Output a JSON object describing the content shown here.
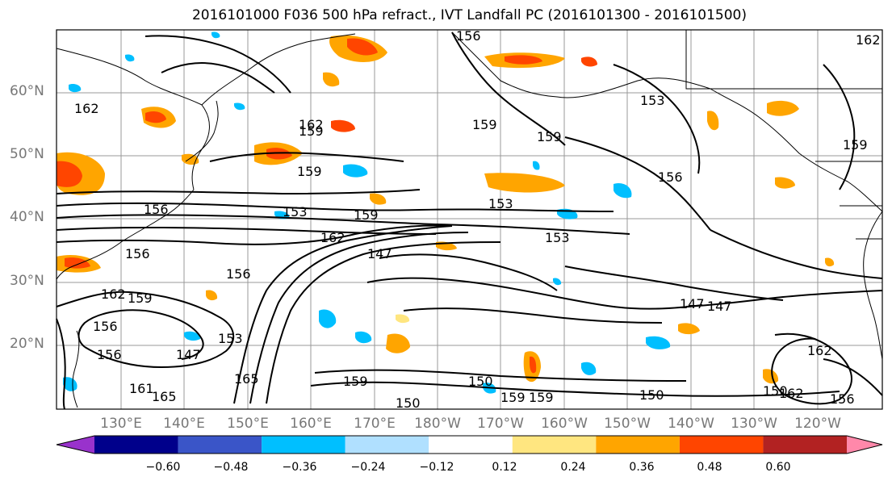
{
  "title": "2016101000 F036 500 hPa refract., IVT Landfall PC (2016101300 - 2016101500)",
  "lat_labels": [
    "60°N",
    "50°N",
    "40°N",
    "30°N",
    "20°N"
  ],
  "lon_labels": [
    "130°E",
    "140°E",
    "150°E",
    "160°E",
    "170°E",
    "180°W",
    "170°W",
    "160°W",
    "150°W",
    "140°W",
    "130°W",
    "120°W"
  ],
  "contour_labels": [
    "156",
    "162",
    "162",
    "159",
    "156",
    "153",
    "159",
    "162",
    "159",
    "153",
    "156",
    "159",
    "153",
    "153",
    "162",
    "147",
    "147",
    "156",
    "162",
    "159",
    "147",
    "153",
    "159",
    "150",
    "150",
    "159",
    "159",
    "150",
    "162",
    "156",
    "162",
    "150",
    "159",
    "156",
    "147",
    "161",
    "165",
    "156",
    "165",
    "159",
    "156"
  ],
  "colorbar": {
    "ticks": [
      "−0.60",
      "−0.48",
      "−0.36",
      "−0.24",
      "−0.12",
      "0.12",
      "0.24",
      "0.36",
      "0.48",
      "0.60"
    ],
    "colors": [
      "#9932CC",
      "#00008B",
      "#3A55C8",
      "#00BFFF",
      "#B0E0FF",
      "#FFFFFF",
      "#FFE680",
      "#FFA500",
      "#FF4500",
      "#B22222",
      "#FF88AA"
    ]
  },
  "fill_colors": {
    "orange": "#FFA500",
    "red_orange": "#FF4500",
    "yellow": "#FFE680",
    "blue": "#00BFFF",
    "light_blue": "#B0E0FF"
  }
}
